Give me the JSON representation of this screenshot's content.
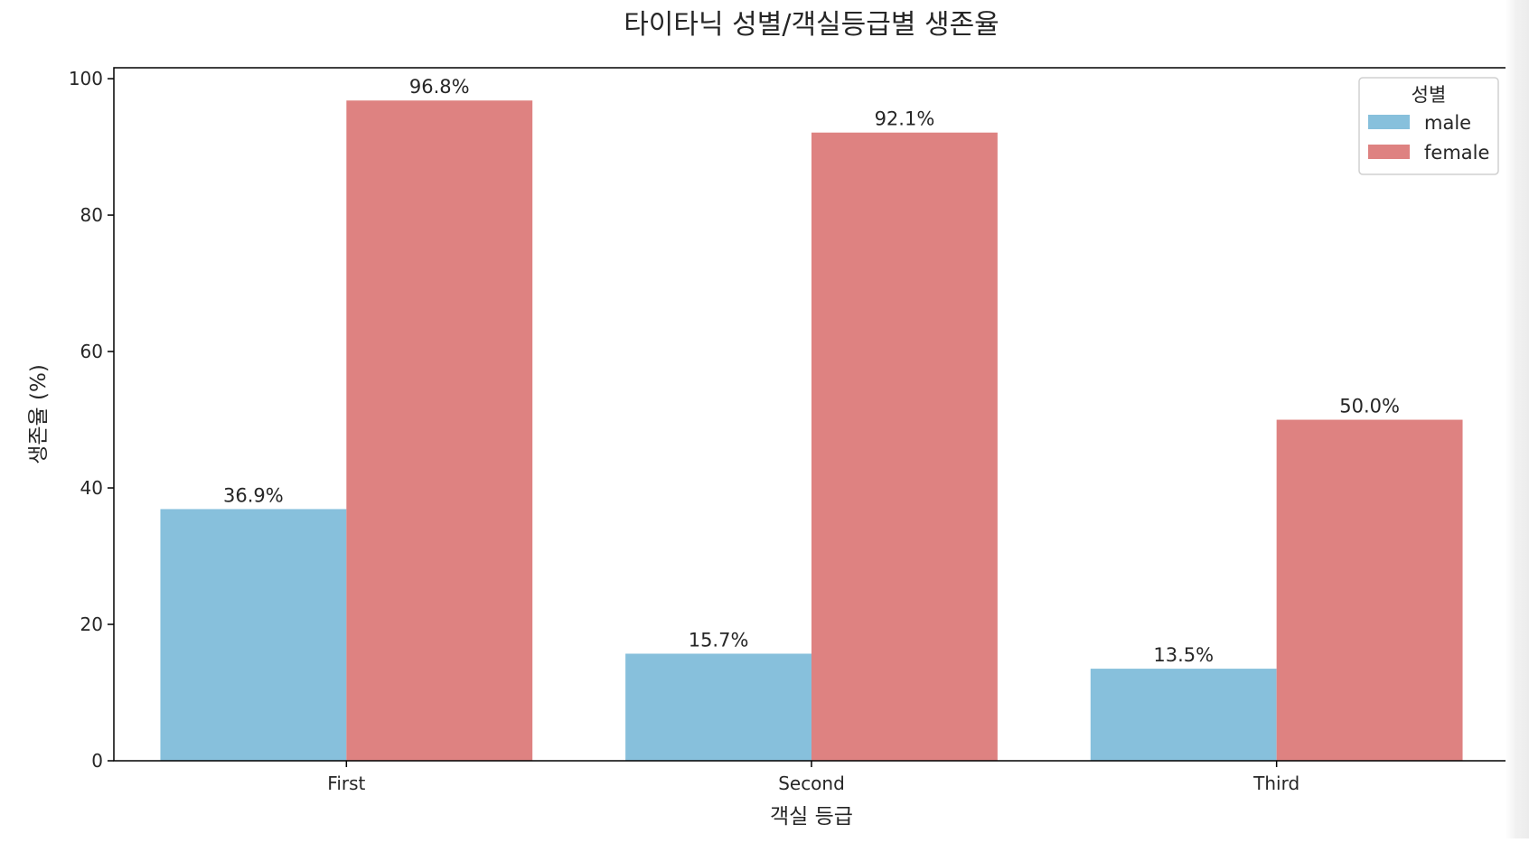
{
  "chart_data": {
    "type": "bar",
    "title": "타이타닉 성별/객실등급별 생존율",
    "xlabel": "객실 등급",
    "ylabel": "생존율 (%)",
    "categories": [
      "First",
      "Second",
      "Third"
    ],
    "series": [
      {
        "name": "male",
        "color": "#87c0dc",
        "values": [
          36.9,
          15.7,
          13.5
        ],
        "labels": [
          "36.9%",
          "15.7%",
          "13.5%"
        ]
      },
      {
        "name": "female",
        "color": "#de8281",
        "values": [
          96.8,
          92.1,
          50.0
        ],
        "labels": [
          "96.8%",
          "92.1%",
          "50.0%"
        ]
      }
    ],
    "ylim": [
      0,
      101.6
    ],
    "yticks": [
      0,
      20,
      40,
      60,
      80,
      100
    ],
    "ytick_labels": [
      "0",
      "20",
      "40",
      "60",
      "80",
      "100"
    ],
    "grid": false,
    "legend": {
      "title": "성별",
      "placement": "top-right"
    }
  }
}
